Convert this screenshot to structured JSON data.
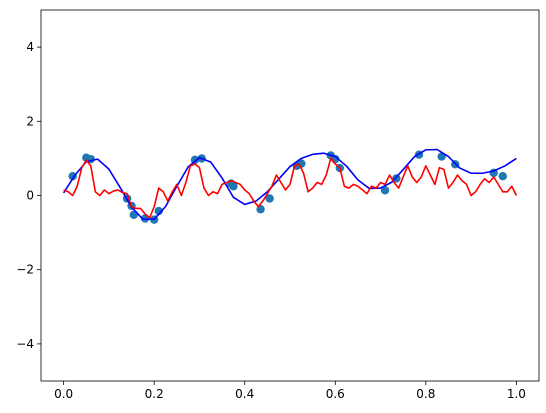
{
  "chart_data": {
    "type": "line",
    "title": "",
    "xlabel": "",
    "ylabel": "",
    "xlim": [
      -0.05,
      1.05
    ],
    "ylim": [
      -5,
      5
    ],
    "x_ticks": [
      0.0,
      0.2,
      0.4,
      0.6,
      0.8,
      1.0
    ],
    "x_tick_labels": [
      "0.0",
      "0.2",
      "0.4",
      "0.6",
      "0.8",
      "1.0"
    ],
    "y_ticks": [
      -4,
      -2,
      0,
      2,
      4
    ],
    "y_tick_labels": [
      "−4",
      "−2",
      "0",
      "2",
      "4"
    ],
    "grid": false,
    "legend": "none",
    "series": [
      {
        "kind": "scatter",
        "color": "#1f77b4",
        "points": [
          [
            0.02,
            0.52
          ],
          [
            0.05,
            1.02
          ],
          [
            0.06,
            0.98
          ],
          [
            0.14,
            -0.08
          ],
          [
            0.15,
            -0.28
          ],
          [
            0.155,
            -0.52
          ],
          [
            0.18,
            -0.62
          ],
          [
            0.2,
            -0.65
          ],
          [
            0.21,
            -0.42
          ],
          [
            0.29,
            0.96
          ],
          [
            0.305,
            1.0
          ],
          [
            0.37,
            0.32
          ],
          [
            0.375,
            0.25
          ],
          [
            0.435,
            -0.37
          ],
          [
            0.455,
            -0.08
          ],
          [
            0.515,
            0.8
          ],
          [
            0.525,
            0.86
          ],
          [
            0.59,
            1.08
          ],
          [
            0.6,
            0.98
          ],
          [
            0.61,
            0.74
          ],
          [
            0.71,
            0.14
          ],
          [
            0.735,
            0.46
          ],
          [
            0.785,
            1.1
          ],
          [
            0.835,
            1.05
          ],
          [
            0.865,
            0.84
          ],
          [
            0.95,
            0.61
          ],
          [
            0.97,
            0.52
          ]
        ]
      },
      {
        "kind": "line",
        "color": "#0000ff",
        "x": [
          0.0,
          0.025,
          0.05,
          0.075,
          0.1,
          0.125,
          0.15,
          0.175,
          0.2,
          0.225,
          0.25,
          0.275,
          0.3,
          0.325,
          0.35,
          0.375,
          0.4,
          0.425,
          0.45,
          0.475,
          0.5,
          0.525,
          0.55,
          0.575,
          0.6,
          0.625,
          0.65,
          0.675,
          0.7,
          0.725,
          0.75,
          0.775,
          0.8,
          0.825,
          0.85,
          0.875,
          0.9,
          0.925,
          0.95,
          0.975,
          1.0
        ],
        "y": [
          0.07,
          0.55,
          0.91,
          0.98,
          0.71,
          0.21,
          -0.31,
          -0.64,
          -0.64,
          -0.3,
          0.25,
          0.77,
          1.02,
          0.9,
          0.47,
          -0.05,
          -0.24,
          -0.15,
          0.1,
          0.44,
          0.78,
          1.0,
          1.11,
          1.14,
          1.05,
          0.79,
          0.42,
          0.19,
          0.2,
          0.36,
          0.7,
          1.05,
          1.23,
          1.24,
          1.05,
          0.74,
          0.6,
          0.6,
          0.66,
          0.8,
          1.0
        ]
      },
      {
        "kind": "line",
        "color": "#ff0000",
        "x": [
          0.0,
          0.01,
          0.02,
          0.03,
          0.04,
          0.05,
          0.06,
          0.07,
          0.08,
          0.09,
          0.1,
          0.11,
          0.12,
          0.13,
          0.14,
          0.15,
          0.16,
          0.17,
          0.18,
          0.19,
          0.2,
          0.21,
          0.22,
          0.23,
          0.24,
          0.25,
          0.26,
          0.27,
          0.28,
          0.29,
          0.3,
          0.31,
          0.32,
          0.33,
          0.34,
          0.35,
          0.36,
          0.37,
          0.38,
          0.39,
          0.4,
          0.41,
          0.42,
          0.43,
          0.44,
          0.45,
          0.46,
          0.47,
          0.48,
          0.49,
          0.5,
          0.51,
          0.52,
          0.53,
          0.54,
          0.55,
          0.56,
          0.57,
          0.58,
          0.59,
          0.6,
          0.61,
          0.62,
          0.63,
          0.64,
          0.65,
          0.66,
          0.67,
          0.68,
          0.69,
          0.7,
          0.71,
          0.72,
          0.73,
          0.74,
          0.75,
          0.76,
          0.77,
          0.78,
          0.79,
          0.8,
          0.81,
          0.82,
          0.83,
          0.84,
          0.85,
          0.86,
          0.87,
          0.88,
          0.89,
          0.9,
          0.91,
          0.92,
          0.93,
          0.94,
          0.95,
          0.96,
          0.97,
          0.98,
          0.99,
          1.0
        ],
        "y": [
          0.15,
          0.1,
          0.0,
          0.25,
          0.75,
          0.95,
          0.8,
          0.1,
          0.0,
          0.15,
          0.05,
          0.12,
          0.15,
          0.08,
          0.05,
          -0.3,
          -0.35,
          -0.35,
          -0.5,
          -0.6,
          -0.3,
          0.2,
          0.1,
          -0.15,
          0.1,
          0.3,
          0.0,
          0.35,
          0.8,
          0.85,
          0.75,
          0.2,
          0.0,
          0.1,
          0.05,
          0.3,
          0.35,
          0.4,
          0.35,
          0.3,
          0.15,
          0.05,
          -0.15,
          -0.3,
          -0.15,
          0.05,
          0.25,
          0.55,
          0.35,
          0.15,
          0.3,
          0.8,
          0.85,
          0.6,
          0.1,
          0.2,
          0.35,
          0.3,
          0.55,
          1.0,
          0.85,
          0.75,
          0.25,
          0.2,
          0.3,
          0.25,
          0.15,
          0.05,
          0.25,
          0.2,
          0.35,
          0.3,
          0.55,
          0.35,
          0.2,
          0.5,
          0.8,
          0.5,
          0.35,
          0.5,
          0.8,
          0.55,
          0.3,
          0.75,
          0.7,
          0.2,
          0.35,
          0.55,
          0.4,
          0.3,
          0.0,
          0.1,
          0.3,
          0.45,
          0.35,
          0.5,
          0.3,
          0.1,
          0.1,
          0.25,
          0.0
        ]
      }
    ]
  }
}
